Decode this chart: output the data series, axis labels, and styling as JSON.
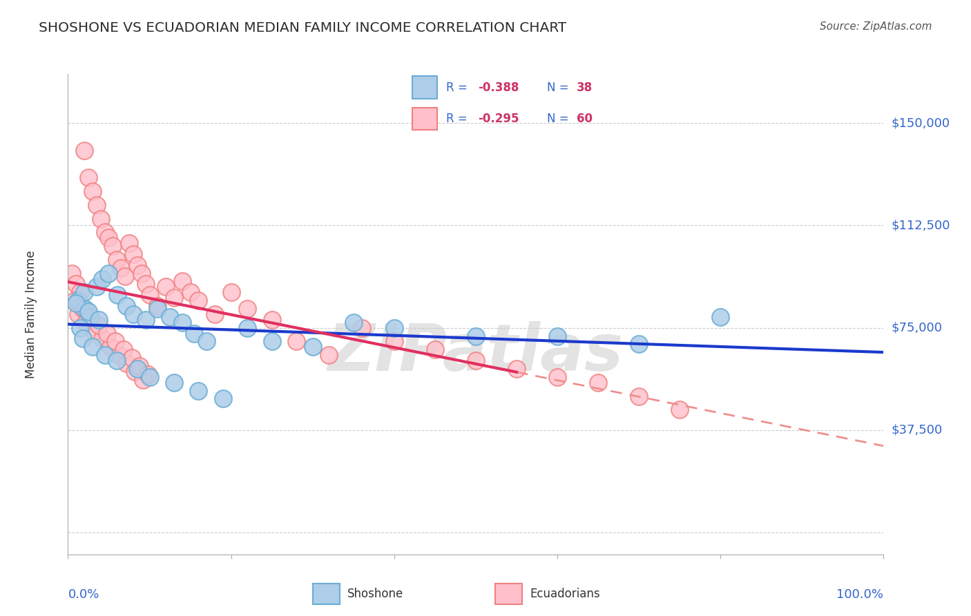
{
  "title": "SHOSHONE VS ECUADORIAN MEDIAN FAMILY INCOME CORRELATION CHART",
  "source": "Source: ZipAtlas.com",
  "ylabel": "Median Family Income",
  "ytick_vals": [
    0,
    37500,
    75000,
    112500,
    150000
  ],
  "ytick_labels": [
    "",
    "$37,500",
    "$75,000",
    "$112,500",
    "$150,000"
  ],
  "ymin": -8000,
  "ymax": 168000,
  "xmin": 0.0,
  "xmax": 100.0,
  "watermark": "ZIPatlas",
  "legend_r1": "-0.388",
  "legend_n1": "38",
  "legend_r2": "-0.295",
  "legend_n2": "60",
  "shoshone_edge": "#6baed6",
  "shoshone_face": "#aecde8",
  "ecuadorian_edge": "#f08080",
  "ecuadorian_face": "#ffc0cb",
  "blue_line": "#1a3acc",
  "pink_line": "#e03060",
  "pink_dash": "#f09090",
  "title_color": "#2d2d2d",
  "source_color": "#555555",
  "axis_blue": "#3366cc",
  "legend_red": "#cc3366",
  "grid_color": "#cccccc",
  "shoshone_x": [
    1.2,
    2.1,
    2.8,
    1.5,
    1.8,
    2.0,
    3.5,
    4.2,
    5.0,
    6.1,
    7.2,
    8.0,
    9.5,
    11.0,
    12.5,
    14.0,
    15.5,
    17.0,
    3.0,
    4.5,
    6.0,
    8.5,
    10.0,
    13.0,
    16.0,
    19.0,
    22.0,
    25.0,
    30.0,
    35.0,
    40.0,
    50.0,
    60.0,
    70.0,
    80.0,
    1.0,
    2.5,
    3.8
  ],
  "shoshone_y": [
    85000,
    82000,
    79000,
    75000,
    71000,
    88000,
    90000,
    93000,
    95000,
    87000,
    83000,
    80000,
    78000,
    82000,
    79000,
    77000,
    73000,
    70000,
    68000,
    65000,
    63000,
    60000,
    57000,
    55000,
    52000,
    49000,
    75000,
    70000,
    68000,
    77000,
    75000,
    72000,
    72000,
    69000,
    79000,
    84000,
    81000,
    78000
  ],
  "ecuadorian_x": [
    0.5,
    1.0,
    1.5,
    2.0,
    2.5,
    3.0,
    3.5,
    4.0,
    4.5,
    5.0,
    5.5,
    6.0,
    6.5,
    7.0,
    7.5,
    8.0,
    8.5,
    9.0,
    9.5,
    10.0,
    11.0,
    12.0,
    13.0,
    14.0,
    15.0,
    16.0,
    18.0,
    20.0,
    22.0,
    25.0,
    28.0,
    32.0,
    36.0,
    40.0,
    45.0,
    50.0,
    55.0,
    60.0,
    65.0,
    70.0,
    1.2,
    2.2,
    3.2,
    4.2,
    5.2,
    6.2,
    7.2,
    8.2,
    9.2,
    0.8,
    1.8,
    2.8,
    3.8,
    4.8,
    5.8,
    6.8,
    7.8,
    8.8,
    9.8,
    75.0
  ],
  "ecuadorian_y": [
    95000,
    91000,
    88000,
    140000,
    130000,
    125000,
    120000,
    115000,
    110000,
    108000,
    105000,
    100000,
    97000,
    94000,
    106000,
    102000,
    98000,
    95000,
    91000,
    87000,
    83000,
    90000,
    86000,
    92000,
    88000,
    85000,
    80000,
    88000,
    82000,
    78000,
    70000,
    65000,
    75000,
    70000,
    67000,
    63000,
    60000,
    57000,
    55000,
    50000,
    80000,
    77000,
    74000,
    71000,
    68000,
    65000,
    62000,
    59000,
    56000,
    85000,
    82000,
    79000,
    76000,
    73000,
    70000,
    67000,
    64000,
    61000,
    58000,
    45000
  ]
}
